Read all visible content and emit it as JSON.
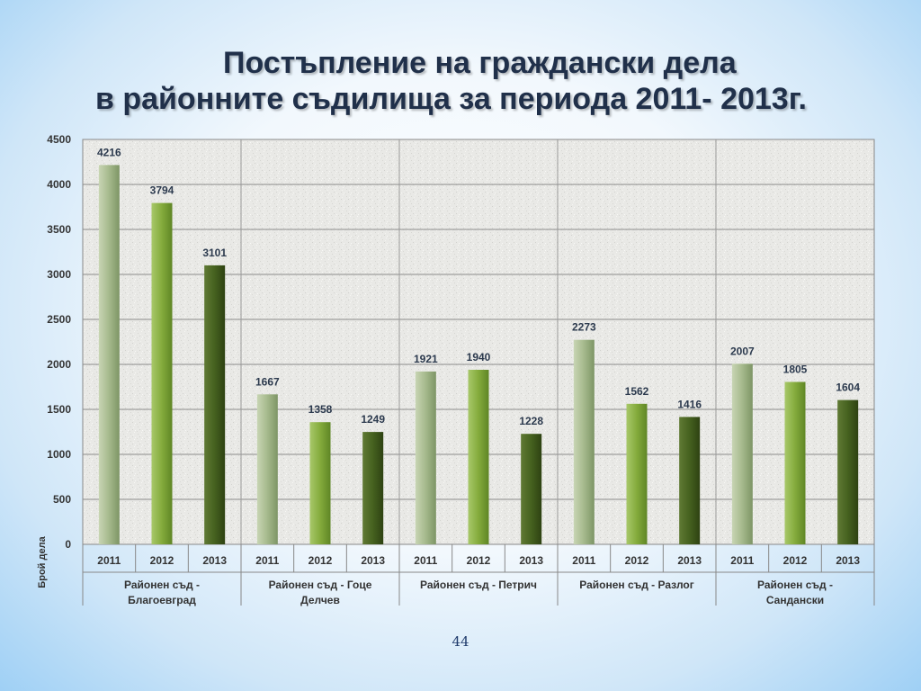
{
  "slide": {
    "title_line1": "Постъпление на граждански дела",
    "title_line2": "в районните съдилища за периода 2011- 2013г.",
    "page_number": "44"
  },
  "chart_data": {
    "type": "bar",
    "ylabel": "Брой дела",
    "ylim": [
      0,
      4500
    ],
    "yticks": [
      0,
      500,
      1000,
      1500,
      2000,
      2500,
      3000,
      3500,
      4000,
      4500
    ],
    "grid": true,
    "groups": [
      {
        "name": "Районен съд - Благоевград",
        "label_lines": [
          "Районен съд -",
          "Благоевград"
        ],
        "years": [
          "2011",
          "2012",
          "2013"
        ],
        "values": [
          4216,
          3794,
          3101
        ]
      },
      {
        "name": "Районен съд - Гоце Делчев",
        "label_lines": [
          "Районен съд - Гоце",
          "Делчев"
        ],
        "years": [
          "2011",
          "2012",
          "2013"
        ],
        "values": [
          1667,
          1358,
          1249
        ]
      },
      {
        "name": "Районен съд - Петрич",
        "label_lines": [
          "Районен съд - Петрич"
        ],
        "years": [
          "2011",
          "2012",
          "2013"
        ],
        "values": [
          1921,
          1940,
          1228
        ]
      },
      {
        "name": "Районен съд - Разлог",
        "label_lines": [
          "Районен съд - Разлог"
        ],
        "years": [
          "2011",
          "2012",
          "2013"
        ],
        "values": [
          2273,
          1562,
          1416
        ]
      },
      {
        "name": "Районен съд - Сандански",
        "label_lines": [
          "Районен съд -",
          "Сандански"
        ],
        "years": [
          "2011",
          "2012",
          "2013"
        ],
        "values": [
          2007,
          1805,
          1604
        ]
      }
    ],
    "bar_colors": {
      "2011": "#8fa878",
      "2012": "#6e9a2e",
      "2013": "#3f5a1c"
    }
  }
}
